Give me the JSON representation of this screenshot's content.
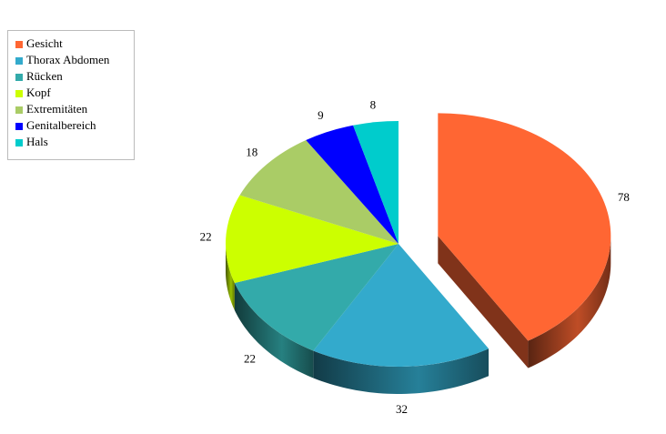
{
  "chart_data": {
    "type": "pie3d",
    "categories": [
      "Gesicht",
      "Thorax Abdomen",
      "Rücken",
      "Kopf",
      "Extremitäten",
      "Genitalbereich",
      "Hals"
    ],
    "values": [
      78,
      32,
      22,
      22,
      18,
      9,
      8
    ],
    "colors": [
      "#ff6633",
      "#33aacc",
      "#33aaaa",
      "#ccff00",
      "#aacc66",
      "#0000ff",
      "#00cccc"
    ],
    "legend": "top-left"
  }
}
